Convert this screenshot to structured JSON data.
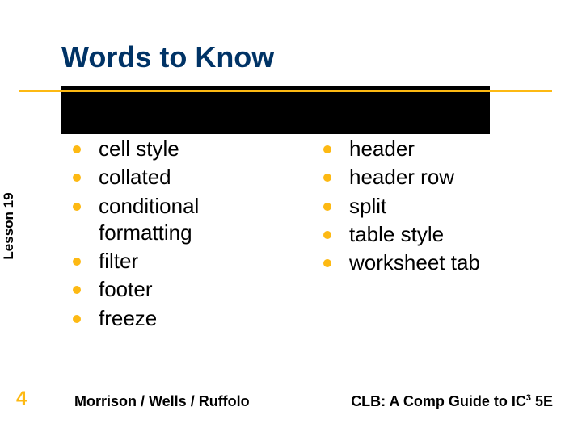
{
  "title": "Words to Know",
  "sidebar_label": "Lesson 19",
  "page_number": "4",
  "footer_left": "Morrison / Wells / Ruffolo",
  "footer_right_pre": "CLB: A Comp Guide to IC",
  "footer_right_sup": "3",
  "footer_right_post": " 5E",
  "colors": {
    "title": "#003366",
    "accent": "#fdb913",
    "text": "#000000",
    "bar": "#000000",
    "background": "#ffffff"
  },
  "left_column": [
    "cell style",
    "collated",
    "conditional formatting",
    "filter",
    "footer",
    "freeze"
  ],
  "right_column": [
    "header",
    "header row",
    "split",
    "table style",
    "worksheet tab"
  ]
}
